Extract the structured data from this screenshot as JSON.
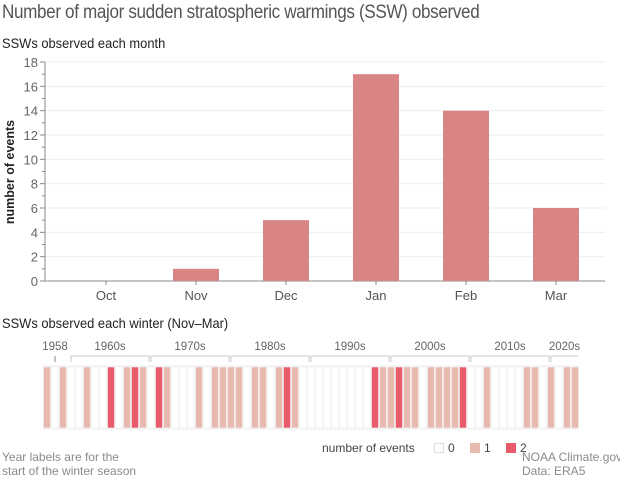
{
  "title": "Number of major sudden stratospheric warmings (SSW) observed",
  "colors": {
    "bar": "#d98585",
    "zero": "#ffffff",
    "one": "#e8b9ae",
    "two": "#e95a6b",
    "grid": "#eeeeee",
    "axis": "#888888"
  },
  "chart_data": [
    {
      "type": "bar",
      "title": "SSWs observed each month",
      "xlabel": "",
      "ylabel": "number of events",
      "categories": [
        "Oct",
        "Nov",
        "Dec",
        "Jan",
        "Feb",
        "Mar"
      ],
      "values": [
        0,
        1,
        5,
        17,
        14,
        6
      ],
      "ylim": [
        0,
        18
      ],
      "yticks": [
        "0",
        "2",
        "4",
        "6",
        "8",
        "10",
        "12",
        "14",
        "16",
        "18"
      ],
      "grid": true
    },
    {
      "type": "heatmap",
      "title": "SSWs observed each winter (Nov–Mar)",
      "first_label": "1958",
      "decade_labels": [
        "1960s",
        "1970s",
        "1980s",
        "1990s",
        "2000s",
        "2010s",
        "2020s"
      ],
      "winters": [
        {
          "year": 1957,
          "events": 1
        },
        {
          "year": 1958,
          "events": 0
        },
        {
          "year": 1959,
          "events": 1
        },
        {
          "year": 1960,
          "events": 0
        },
        {
          "year": 1961,
          "events": 0
        },
        {
          "year": 1962,
          "events": 1
        },
        {
          "year": 1963,
          "events": 0
        },
        {
          "year": 1964,
          "events": 0
        },
        {
          "year": 1965,
          "events": 2
        },
        {
          "year": 1966,
          "events": 0
        },
        {
          "year": 1967,
          "events": 1
        },
        {
          "year": 1968,
          "events": 2
        },
        {
          "year": 1969,
          "events": 1
        },
        {
          "year": 1970,
          "events": 0
        },
        {
          "year": 1971,
          "events": 2
        },
        {
          "year": 1972,
          "events": 1
        },
        {
          "year": 1973,
          "events": 0
        },
        {
          "year": 1974,
          "events": 0
        },
        {
          "year": 1975,
          "events": 0
        },
        {
          "year": 1976,
          "events": 1
        },
        {
          "year": 1977,
          "events": 0
        },
        {
          "year": 1978,
          "events": 1
        },
        {
          "year": 1979,
          "events": 1
        },
        {
          "year": 1980,
          "events": 1
        },
        {
          "year": 1981,
          "events": 1
        },
        {
          "year": 1982,
          "events": 0
        },
        {
          "year": 1983,
          "events": 1
        },
        {
          "year": 1984,
          "events": 1
        },
        {
          "year": 1985,
          "events": 0
        },
        {
          "year": 1986,
          "events": 1
        },
        {
          "year": 1987,
          "events": 2
        },
        {
          "year": 1988,
          "events": 1
        },
        {
          "year": 1989,
          "events": 0
        },
        {
          "year": 1990,
          "events": 0
        },
        {
          "year": 1991,
          "events": 0
        },
        {
          "year": 1992,
          "events": 0
        },
        {
          "year": 1993,
          "events": 0
        },
        {
          "year": 1994,
          "events": 0
        },
        {
          "year": 1995,
          "events": 0
        },
        {
          "year": 1996,
          "events": 0
        },
        {
          "year": 1997,
          "events": 0
        },
        {
          "year": 1998,
          "events": 2
        },
        {
          "year": 1999,
          "events": 1
        },
        {
          "year": 2000,
          "events": 1
        },
        {
          "year": 2001,
          "events": 2
        },
        {
          "year": 2002,
          "events": 1
        },
        {
          "year": 2003,
          "events": 1
        },
        {
          "year": 2004,
          "events": 0
        },
        {
          "year": 2005,
          "events": 1
        },
        {
          "year": 2006,
          "events": 1
        },
        {
          "year": 2007,
          "events": 1
        },
        {
          "year": 2008,
          "events": 1
        },
        {
          "year": 2009,
          "events": 2
        },
        {
          "year": 2010,
          "events": 0
        },
        {
          "year": 2011,
          "events": 0
        },
        {
          "year": 2012,
          "events": 1
        },
        {
          "year": 2013,
          "events": 0
        },
        {
          "year": 2014,
          "events": 0
        },
        {
          "year": 2015,
          "events": 0
        },
        {
          "year": 2016,
          "events": 0
        },
        {
          "year": 2017,
          "events": 1
        },
        {
          "year": 2018,
          "events": 1
        },
        {
          "year": 2019,
          "events": 0
        },
        {
          "year": 2020,
          "events": 1
        },
        {
          "year": 2021,
          "events": 0
        },
        {
          "year": 2022,
          "events": 1
        },
        {
          "year": 2023,
          "events": 1
        }
      ],
      "legend": {
        "title": "number of events",
        "items": [
          "0",
          "1",
          "2"
        ],
        "placement": "bottom"
      }
    }
  ],
  "footnote": {
    "line1": "Year labels are for the",
    "line2": "start of the winter season"
  },
  "credit": {
    "line1": "NOAA Climate.gov",
    "line2": "Data: ERA5"
  }
}
